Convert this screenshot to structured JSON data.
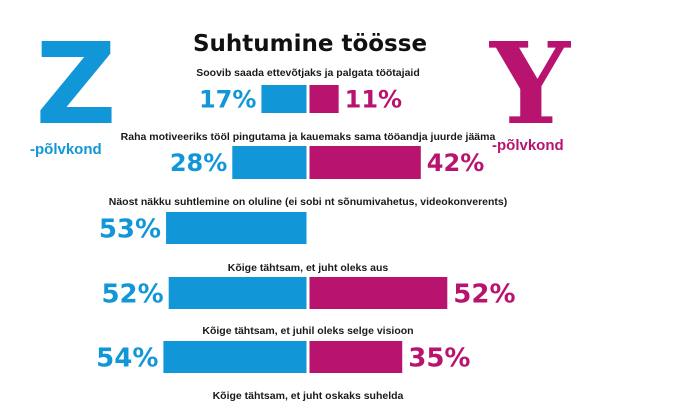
{
  "chart_data": {
    "type": "bar",
    "title": "Suhtumine töösse",
    "xlim": [
      0,
      100
    ],
    "series": [
      {
        "key": "z",
        "letter": "Z",
        "name": "-põlvkond",
        "color": "#1196d8"
      },
      {
        "key": "y",
        "letter": "Y",
        "name": "-põlvkond",
        "color": "#b8136f"
      }
    ],
    "categories": [
      "Soovib saada ettevõtjaks ja palgata töötajaid",
      "Raha motiveeriks tööl pingutama ja kauemaks sama tööandja juurde jääma",
      "Näost näkku suhtlemine on oluline (ei sobi nt sõnumivahetus, videokonverents)",
      "Kõige tähtsam, et juht oleks aus",
      "Kõige tähtsam, et juhil oleks selge visioon",
      "Kõige tähtsam, et juht oskaks suhelda"
    ],
    "rows": [
      {
        "z": 17,
        "z_label": "17%",
        "y": 11,
        "y_label": "11%"
      },
      {
        "z": 28,
        "z_label": "28%",
        "y": 42,
        "y_label": "42%"
      },
      {
        "z": 53,
        "z_label": "53%",
        "y": null,
        "y_label": ""
      },
      {
        "z": 52,
        "z_label": "52%",
        "y": 52,
        "y_label": "52%"
      },
      {
        "z": 54,
        "z_label": "54%",
        "y": 35,
        "y_label": "35%"
      },
      {
        "z": null,
        "z_label": "",
        "y": null,
        "y_label": ""
      }
    ]
  }
}
